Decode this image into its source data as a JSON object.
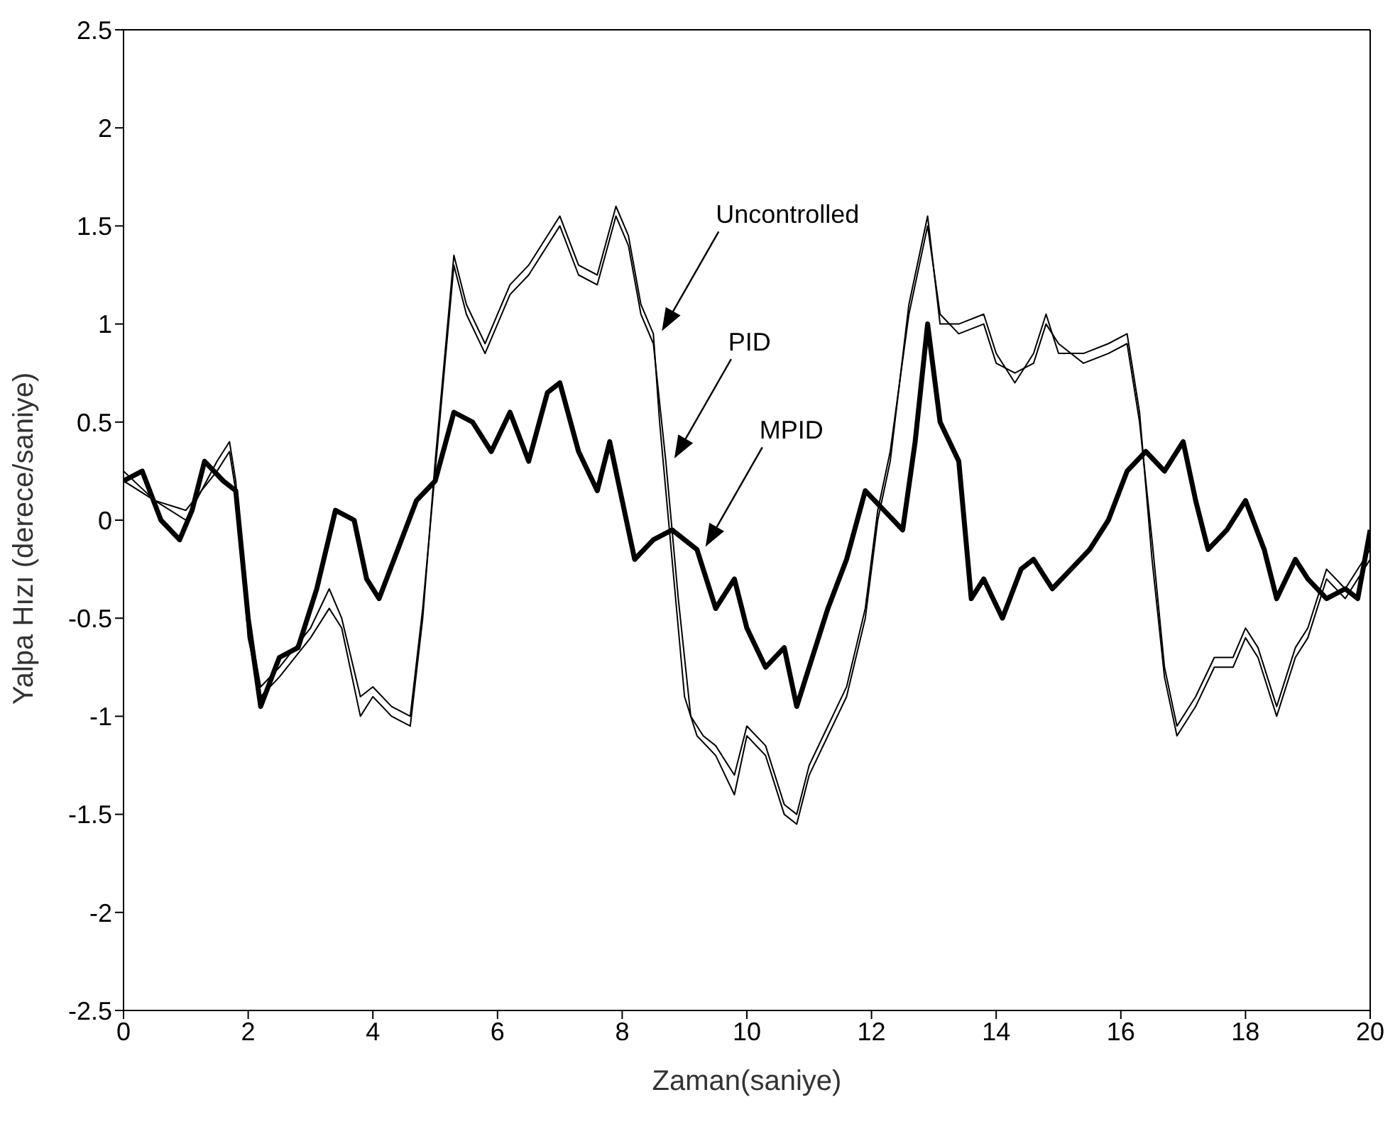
{
  "chart_data": {
    "type": "line",
    "xlabel": "Zaman(saniye)",
    "ylabel": "Yalpa Hızı (derece/saniye)",
    "xlim": [
      0,
      20
    ],
    "xticks": [
      0,
      2,
      4,
      6,
      8,
      10,
      12,
      14,
      16,
      18,
      20
    ],
    "ylim": [
      -2.5,
      2.5
    ],
    "yticks": [
      -2.5,
      -2,
      -1.5,
      -1,
      -0.5,
      0,
      0.5,
      1,
      1.5,
      2,
      2.5
    ],
    "marker": "none",
    "line_style": "solid",
    "series": [
      {
        "name": "Uncontrolled",
        "color": "#000000",
        "x": [
          0,
          0.5,
          1,
          1.5,
          1.7,
          1.8,
          2,
          2.2,
          2.5,
          3,
          3.3,
          3.5,
          3.8,
          4,
          4.3,
          4.6,
          4.8,
          5,
          5.3,
          5.5,
          5.8,
          6.2,
          6.5,
          6.8,
          7,
          7.3,
          7.6,
          7.9,
          8.1,
          8.3,
          8.5,
          8.6,
          8.8,
          9,
          9.2,
          9.5,
          9.8,
          10,
          10.3,
          10.6,
          10.8,
          11,
          11.3,
          11.6,
          11.9,
          12.1,
          12.3,
          12.6,
          12.9,
          13.1,
          13.4,
          13.8,
          14,
          14.3,
          14.6,
          14.8,
          15,
          15.4,
          15.8,
          16.1,
          16.3,
          16.5,
          16.7,
          16.9,
          17.2,
          17.5,
          17.8,
          18,
          18.2,
          18.5,
          18.8,
          19,
          19.3,
          19.6,
          20
        ],
        "values": [
          0.2,
          0.1,
          0,
          0.3,
          0.4,
          0.2,
          -0.6,
          -0.9,
          -0.8,
          -0.6,
          -0.45,
          -0.55,
          -1,
          -0.9,
          -1,
          -1.05,
          -0.5,
          0.3,
          1.35,
          1.1,
          0.9,
          1.2,
          1.3,
          1.45,
          1.55,
          1.3,
          1.25,
          1.6,
          1.45,
          1.1,
          0.95,
          0.5,
          -0.2,
          -0.9,
          -1.1,
          -1.2,
          -1.4,
          -1.1,
          -1.2,
          -1.5,
          -1.55,
          -1.3,
          -1.1,
          -0.9,
          -0.5,
          0,
          0.3,
          1.1,
          1.55,
          1,
          1,
          1.05,
          0.85,
          0.7,
          0.85,
          1.05,
          0.85,
          0.85,
          0.9,
          0.95,
          0.55,
          -0.2,
          -0.8,
          -1.1,
          -0.95,
          -0.75,
          -0.75,
          -0.6,
          -0.7,
          -1,
          -0.7,
          -0.6,
          -0.3,
          -0.4,
          -0.2
        ]
      },
      {
        "name": "PID",
        "color": "#000000",
        "x": [
          0,
          0.5,
          1,
          1.5,
          1.7,
          1.8,
          2,
          2.2,
          2.5,
          3,
          3.3,
          3.5,
          3.8,
          4,
          4.3,
          4.6,
          4.8,
          5,
          5.3,
          5.5,
          5.8,
          6.2,
          6.5,
          6.8,
          7,
          7.3,
          7.6,
          7.9,
          8.1,
          8.3,
          8.5,
          8.7,
          8.9,
          9.1,
          9.3,
          9.5,
          9.8,
          10,
          10.3,
          10.6,
          10.8,
          11,
          11.3,
          11.6,
          11.9,
          12.1,
          12.3,
          12.6,
          12.9,
          13.1,
          13.4,
          13.8,
          14,
          14.3,
          14.6,
          14.8,
          15,
          15.4,
          15.8,
          16.1,
          16.3,
          16.5,
          16.7,
          16.9,
          17.2,
          17.5,
          17.8,
          18,
          18.2,
          18.5,
          18.8,
          19,
          19.3,
          19.6,
          20
        ],
        "values": [
          0.25,
          0.1,
          0.05,
          0.25,
          0.35,
          0.15,
          -0.5,
          -0.85,
          -0.75,
          -0.55,
          -0.35,
          -0.5,
          -0.9,
          -0.85,
          -0.95,
          -1,
          -0.45,
          0.25,
          1.3,
          1.05,
          0.85,
          1.15,
          1.25,
          1.4,
          1.5,
          1.25,
          1.2,
          1.55,
          1.4,
          1.05,
          0.9,
          0.3,
          -0.4,
          -1,
          -1.1,
          -1.15,
          -1.3,
          -1.05,
          -1.15,
          -1.45,
          -1.5,
          -1.25,
          -1.05,
          -0.85,
          -0.45,
          0.05,
          0.35,
          1.05,
          1.5,
          1.05,
          0.95,
          1,
          0.8,
          0.75,
          0.8,
          1,
          0.9,
          0.8,
          0.85,
          0.9,
          0.5,
          -0.1,
          -0.75,
          -1.05,
          -0.9,
          -0.7,
          -0.7,
          -0.55,
          -0.65,
          -0.95,
          -0.65,
          -0.55,
          -0.25,
          -0.35,
          -0.15
        ]
      },
      {
        "name": "MPID",
        "color": "#000000",
        "x": [
          0,
          0.3,
          0.6,
          0.9,
          1.1,
          1.3,
          1.6,
          1.8,
          2,
          2.2,
          2.5,
          2.8,
          3.1,
          3.4,
          3.7,
          3.9,
          4.1,
          4.4,
          4.7,
          5,
          5.3,
          5.6,
          5.9,
          6.2,
          6.5,
          6.8,
          7,
          7.3,
          7.6,
          7.8,
          8,
          8.2,
          8.5,
          8.8,
          9.2,
          9.5,
          9.8,
          10,
          10.3,
          10.6,
          10.8,
          11,
          11.3,
          11.6,
          11.9,
          12.2,
          12.5,
          12.7,
          12.9,
          13.1,
          13.4,
          13.6,
          13.8,
          14.1,
          14.4,
          14.6,
          14.9,
          15.2,
          15.5,
          15.8,
          16.1,
          16.4,
          16.7,
          17,
          17.2,
          17.4,
          17.7,
          18,
          18.3,
          18.5,
          18.8,
          19,
          19.3,
          19.6,
          19.8,
          20
        ],
        "values": [
          0.2,
          0.25,
          0,
          -0.1,
          0.05,
          0.3,
          0.2,
          0.15,
          -0.5,
          -0.95,
          -0.7,
          -0.65,
          -0.35,
          0.05,
          0,
          -0.3,
          -0.4,
          -0.15,
          0.1,
          0.2,
          0.55,
          0.5,
          0.35,
          0.55,
          0.3,
          0.65,
          0.7,
          0.35,
          0.15,
          0.4,
          0.1,
          -0.2,
          -0.1,
          -0.05,
          -0.15,
          -0.45,
          -0.3,
          -0.55,
          -0.75,
          -0.65,
          -0.95,
          -0.75,
          -0.45,
          -0.2,
          0.15,
          0.05,
          -0.05,
          0.4,
          1,
          0.5,
          0.3,
          -0.4,
          -0.3,
          -0.5,
          -0.25,
          -0.2,
          -0.35,
          -0.25,
          -0.15,
          0,
          0.25,
          0.35,
          0.25,
          0.4,
          0.1,
          -0.15,
          -0.05,
          0.1,
          -0.15,
          -0.4,
          -0.2,
          -0.3,
          -0.4,
          -0.35,
          -0.4,
          -0.05
        ]
      }
    ]
  }
}
